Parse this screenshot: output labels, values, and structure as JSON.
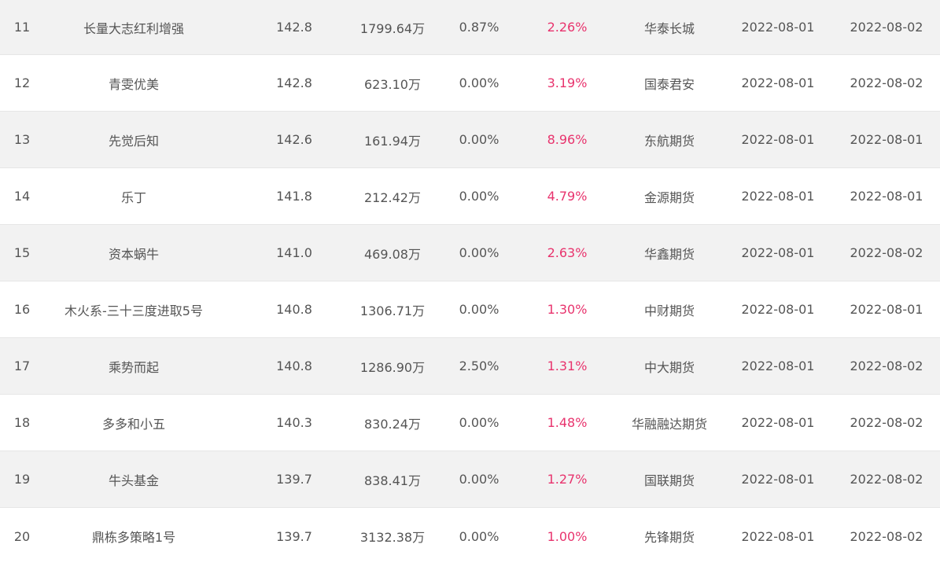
{
  "table": {
    "rows": [
      {
        "rank": "11",
        "name": "长量大志红利增强",
        "score": "142.8",
        "scale": "1799.64万",
        "fee": "0.87%",
        "return": "2.26%",
        "broker": "华泰长城",
        "date1": "2022-08-01",
        "date2": "2022-08-02"
      },
      {
        "rank": "12",
        "name": "青雯优美",
        "score": "142.8",
        "scale": "623.10万",
        "fee": "0.00%",
        "return": "3.19%",
        "broker": "国泰君安",
        "date1": "2022-08-01",
        "date2": "2022-08-02"
      },
      {
        "rank": "13",
        "name": "先觉后知",
        "score": "142.6",
        "scale": "161.94万",
        "fee": "0.00%",
        "return": "8.96%",
        "broker": "东航期货",
        "date1": "2022-08-01",
        "date2": "2022-08-01"
      },
      {
        "rank": "14",
        "name": "乐丁",
        "score": "141.8",
        "scale": "212.42万",
        "fee": "0.00%",
        "return": "4.79%",
        "broker": "金源期货",
        "date1": "2022-08-01",
        "date2": "2022-08-01"
      },
      {
        "rank": "15",
        "name": "资本蜗牛",
        "score": "141.0",
        "scale": "469.08万",
        "fee": "0.00%",
        "return": "2.63%",
        "broker": "华鑫期货",
        "date1": "2022-08-01",
        "date2": "2022-08-02"
      },
      {
        "rank": "16",
        "name": "木火系-三十三度进取5号",
        "score": "140.8",
        "scale": "1306.71万",
        "fee": "0.00%",
        "return": "1.30%",
        "broker": "中财期货",
        "date1": "2022-08-01",
        "date2": "2022-08-01"
      },
      {
        "rank": "17",
        "name": "乘势而起",
        "score": "140.8",
        "scale": "1286.90万",
        "fee": "2.50%",
        "return": "1.31%",
        "broker": "中大期货",
        "date1": "2022-08-01",
        "date2": "2022-08-02"
      },
      {
        "rank": "18",
        "name": "多多和小五",
        "score": "140.3",
        "scale": "830.24万",
        "fee": "0.00%",
        "return": "1.48%",
        "broker": "华融融达期货",
        "date1": "2022-08-01",
        "date2": "2022-08-02"
      },
      {
        "rank": "19",
        "name": "牛头基金",
        "score": "139.7",
        "scale": "838.41万",
        "fee": "0.00%",
        "return": "1.27%",
        "broker": "国联期货",
        "date1": "2022-08-01",
        "date2": "2022-08-02"
      },
      {
        "rank": "20",
        "name": "鼎栋多策略1号",
        "score": "139.7",
        "scale": "3132.38万",
        "fee": "0.00%",
        "return": "1.00%",
        "broker": "先锋期货",
        "date1": "2022-08-01",
        "date2": "2022-08-02"
      }
    ]
  },
  "colors": {
    "return_text": "#e8336d",
    "text": "#555555",
    "alt_row": "#f2f2f2",
    "divider": "#e6e6e6"
  }
}
